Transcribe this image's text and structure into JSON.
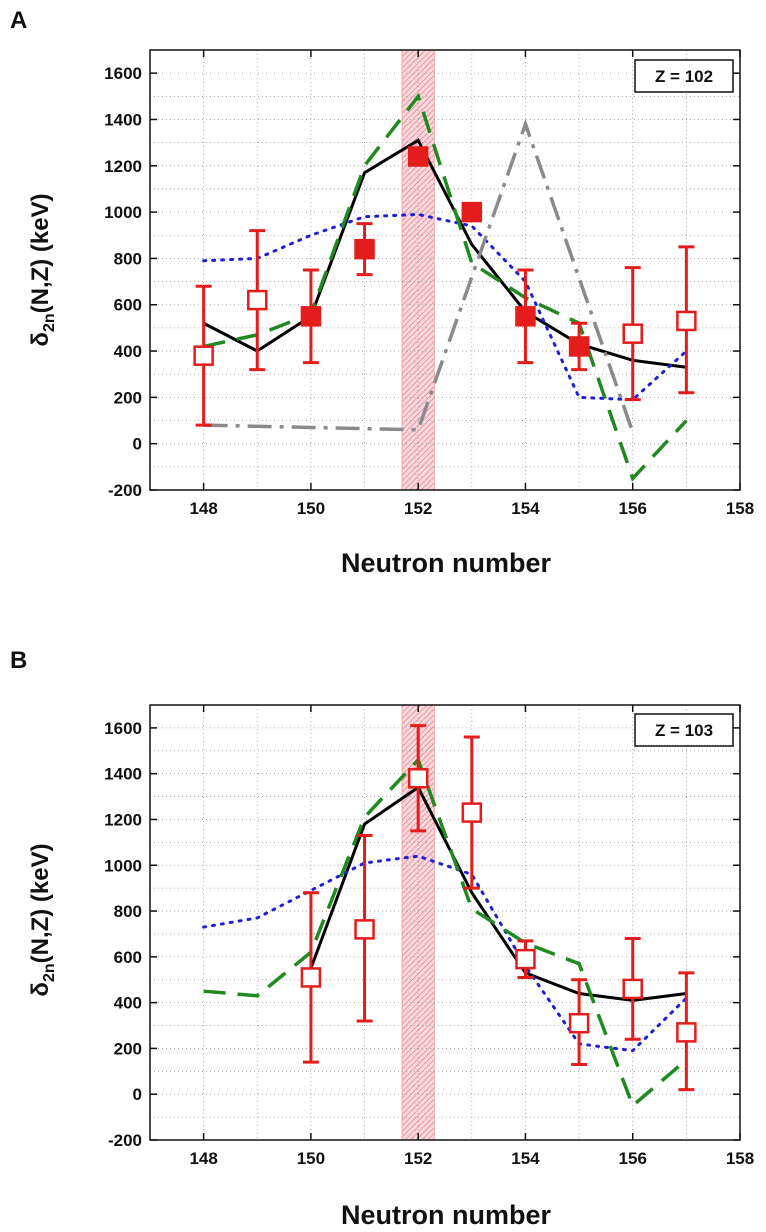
{
  "colors": {
    "theory_solid": "#000000",
    "theory_dotted": "#1f1fd8",
    "theory_dashed": "#1f8a1f",
    "theory_dashdot": "#8a8a8a",
    "experiment": "#e51c1c",
    "highlight": "#f2a0a8"
  },
  "chart_data": [
    {
      "type": "scatter",
      "panel_label": "A",
      "annotation": "Z = 102",
      "xlabel": "Neutron number",
      "ylabel_main": "δ",
      "ylabel_sub": "2n",
      "ylabel_rest": "(N,Z) (keV)",
      "xlim": [
        147,
        158
      ],
      "ylim": [
        -200,
        1700
      ],
      "xticks": [
        148,
        150,
        152,
        154,
        156,
        158
      ],
      "yticks": [
        -200,
        0,
        200,
        400,
        600,
        800,
        1000,
        1200,
        1400,
        1600
      ],
      "grid": true,
      "highlight_band": [
        151.7,
        152.3
      ],
      "series": [
        {
          "style": "solid",
          "x": [
            148,
            149,
            150,
            151,
            152,
            153,
            154,
            155,
            156,
            157
          ],
          "y": [
            520,
            400,
            550,
            1170,
            1310,
            860,
            570,
            430,
            360,
            330
          ]
        },
        {
          "style": "dotted",
          "x": [
            148,
            149,
            150,
            151,
            152,
            153,
            154,
            155,
            156,
            157
          ],
          "y": [
            790,
            800,
            900,
            980,
            990,
            940,
            700,
            200,
            190,
            400
          ]
        },
        {
          "style": "dashed",
          "x": [
            148,
            149,
            150,
            151,
            152,
            153,
            154,
            155,
            156,
            157
          ],
          "y": [
            420,
            470,
            560,
            1200,
            1500,
            780,
            630,
            520,
            -150,
            100
          ]
        },
        {
          "style": "dashdot",
          "x": [
            148,
            152,
            154,
            156
          ],
          "y": [
            80,
            60,
            1380,
            50
          ]
        }
      ],
      "points": [
        {
          "x": 148,
          "y": 380,
          "err_low": 300,
          "err_high": 300,
          "filled": false
        },
        {
          "x": 149,
          "y": 620,
          "err_low": 300,
          "err_high": 300,
          "filled": false
        },
        {
          "x": 150,
          "y": 550,
          "err_low": 200,
          "err_high": 200,
          "filled": true
        },
        {
          "x": 151,
          "y": 840,
          "err_low": 110,
          "err_high": 110,
          "filled": true
        },
        {
          "x": 152,
          "y": 1240,
          "err_low": 0,
          "err_high": 0,
          "filled": true
        },
        {
          "x": 153,
          "y": 1000,
          "err_low": 0,
          "err_high": 0,
          "filled": true
        },
        {
          "x": 154,
          "y": 550,
          "err_low": 200,
          "err_high": 200,
          "filled": true
        },
        {
          "x": 155,
          "y": 420,
          "err_low": 100,
          "err_high": 100,
          "filled": true
        },
        {
          "x": 156,
          "y": 475,
          "err_low": 285,
          "err_high": 285,
          "filled": false
        },
        {
          "x": 157,
          "y": 530,
          "err_low": 310,
          "err_high": 320,
          "filled": false
        }
      ]
    },
    {
      "type": "scatter",
      "panel_label": "B",
      "annotation": "Z = 103",
      "xlabel": "Neutron number",
      "ylabel_main": "δ",
      "ylabel_sub": "2n",
      "ylabel_rest": "(N,Z) (keV)",
      "xlim": [
        147,
        158
      ],
      "ylim": [
        -200,
        1700
      ],
      "xticks": [
        148,
        150,
        152,
        154,
        156,
        158
      ],
      "yticks": [
        -200,
        0,
        200,
        400,
        600,
        800,
        1000,
        1200,
        1400,
        1600
      ],
      "grid": true,
      "highlight_band": [
        151.7,
        152.3
      ],
      "series": [
        {
          "style": "solid",
          "x": [
            150,
            151,
            152,
            153,
            154,
            155,
            156,
            157
          ],
          "y": [
            550,
            1180,
            1340,
            880,
            530,
            440,
            410,
            440
          ]
        },
        {
          "style": "dotted",
          "x": [
            148,
            149,
            150,
            151,
            152,
            153,
            154,
            155,
            156,
            157
          ],
          "y": [
            730,
            770,
            890,
            1010,
            1040,
            960,
            560,
            220,
            190,
            420
          ]
        },
        {
          "style": "dashed",
          "x": [
            148,
            149,
            150,
            151,
            152,
            153,
            154,
            155,
            156,
            157
          ],
          "y": [
            450,
            430,
            620,
            1210,
            1460,
            810,
            660,
            570,
            -50,
            150
          ]
        }
      ],
      "points": [
        {
          "x": 150,
          "y": 510,
          "err_low": 370,
          "err_high": 370,
          "filled": false
        },
        {
          "x": 151,
          "y": 720,
          "err_low": 400,
          "err_high": 410,
          "filled": false
        },
        {
          "x": 152,
          "y": 1380,
          "err_low": 230,
          "err_high": 230,
          "filled": false
        },
        {
          "x": 153,
          "y": 1230,
          "err_low": 330,
          "err_high": 330,
          "filled": false
        },
        {
          "x": 154,
          "y": 590,
          "err_low": 80,
          "err_high": 80,
          "filled": false
        },
        {
          "x": 155,
          "y": 310,
          "err_low": 180,
          "err_high": 190,
          "filled": false
        },
        {
          "x": 156,
          "y": 460,
          "err_low": 220,
          "err_high": 220,
          "filled": false
        },
        {
          "x": 157,
          "y": 270,
          "err_low": 250,
          "err_high": 260,
          "filled": false
        }
      ]
    }
  ]
}
